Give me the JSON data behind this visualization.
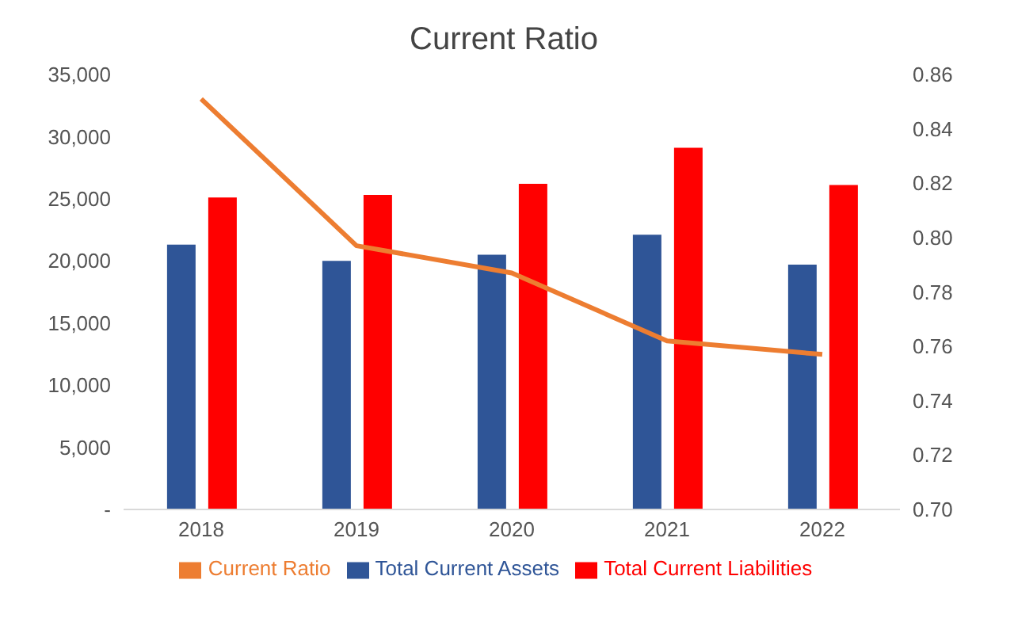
{
  "chart_data": {
    "type": "bar",
    "title": "Current Ratio",
    "categories": [
      "2018",
      "2019",
      "2020",
      "2021",
      "2022"
    ],
    "series": [
      {
        "name": "Total Current Assets",
        "color": "#2f5597",
        "values": [
          21300,
          20000,
          20500,
          22100,
          19700
        ]
      },
      {
        "name": "Total Current Liabilities",
        "color": "#ff0000",
        "values": [
          25100,
          25300,
          26200,
          29100,
          26100
        ]
      },
      {
        "name": "Current Ratio",
        "type": "line",
        "axis": "y2",
        "color": "#ed7d31",
        "values": [
          0.851,
          0.797,
          0.787,
          0.762,
          0.757
        ]
      }
    ],
    "ylim": [
      0,
      35000
    ],
    "yticks": [
      {
        "value": 0,
        "label": "-"
      },
      {
        "value": 5000,
        "label": "5,000"
      },
      {
        "value": 10000,
        "label": "10,000"
      },
      {
        "value": 15000,
        "label": "15,000"
      },
      {
        "value": 20000,
        "label": "20,000"
      },
      {
        "value": 25000,
        "label": "25,000"
      },
      {
        "value": 30000,
        "label": "30,000"
      },
      {
        "value": 35000,
        "label": "35,000"
      }
    ],
    "y2lim": [
      0.7,
      0.86
    ],
    "y2ticks": [
      {
        "value": 0.7,
        "label": "0.70"
      },
      {
        "value": 0.72,
        "label": "0.72"
      },
      {
        "value": 0.74,
        "label": "0.74"
      },
      {
        "value": 0.76,
        "label": "0.76"
      },
      {
        "value": 0.78,
        "label": "0.78"
      },
      {
        "value": 0.8,
        "label": "0.80"
      },
      {
        "value": 0.82,
        "label": "0.82"
      },
      {
        "value": 0.84,
        "label": "0.84"
      },
      {
        "value": 0.86,
        "label": "0.86"
      }
    ],
    "legend": "bottom",
    "marker": "none"
  }
}
